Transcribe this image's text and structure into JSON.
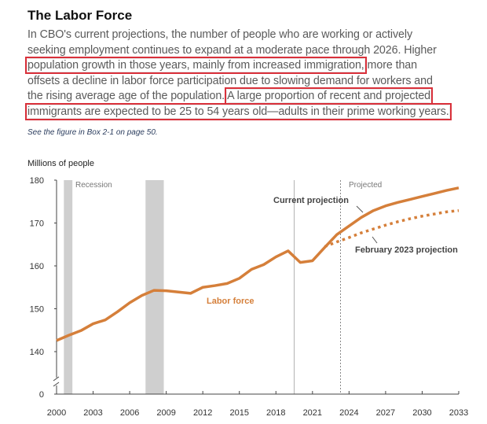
{
  "title": "The Labor Force",
  "paragraph": [
    [
      {
        "text": "In CBO's current projections, the number of people who are working or actively",
        "hl": false
      }
    ],
    [
      {
        "text": "seeking employment continues to expand at a moderate pace through 2026. Higher",
        "hl": false
      }
    ],
    [
      {
        "text": "population growth in those years, mainly from increased immigration,",
        "hl": true
      },
      {
        "text": " more than",
        "hl": false
      }
    ],
    [
      {
        "text": "offsets a decline in labor force participation due to slowing demand for workers and",
        "hl": false
      }
    ],
    [
      {
        "text": "the rising average age of the population. ",
        "hl": false
      },
      {
        "text": "A large proportion of recent and projected",
        "hl": true
      }
    ],
    [
      {
        "text": "immigrants are expected to be 25 to 54 years old—adults in their prime working years.",
        "hl": true
      }
    ]
  ],
  "note": "See the figure in Box 2-1 on page 50.",
  "colors": {
    "labor_force": "#d57f3a",
    "recession": "#cfcfcf",
    "highlight_box": "#d9303a"
  },
  "chart_data": {
    "type": "line",
    "ylabel": "Millions of people",
    "yticks": [
      "180",
      "170",
      "160",
      "150",
      "140",
      "0"
    ],
    "ytick_values": [
      180,
      170,
      160,
      150,
      140,
      0
    ],
    "y_axis_break": true,
    "xticks": [
      "2000",
      "2003",
      "2006",
      "2009",
      "2012",
      "2015",
      "2018",
      "2021",
      "2024",
      "2027",
      "2030",
      "2033"
    ],
    "xlim": [
      2000,
      2033
    ],
    "grid": false,
    "recessions": [
      [
        2000.6,
        2001.3
      ],
      [
        2007.3,
        2008.8
      ]
    ],
    "recession_label": "Recession",
    "projected_label": "Projected",
    "projected_start": 2023.3,
    "covid_marker": 2019.5,
    "series_label": "Labor force",
    "x": [
      2000,
      2001,
      2002,
      2003,
      2004,
      2005,
      2006,
      2007,
      2008,
      2009,
      2010,
      2011,
      2012,
      2013,
      2014,
      2015,
      2016,
      2017,
      2018,
      2019,
      2020,
      2021,
      2022,
      2023,
      2024,
      2025,
      2026,
      2027,
      2028,
      2029,
      2030,
      2031,
      2032,
      2033
    ],
    "series": [
      {
        "name": "Current projection",
        "style": "solid",
        "values": [
          142.6,
          143.8,
          144.9,
          146.5,
          147.4,
          149.3,
          151.4,
          153.1,
          154.3,
          154.2,
          153.9,
          153.6,
          155.0,
          155.4,
          155.9,
          157.1,
          159.2,
          160.3,
          162.1,
          163.5,
          160.8,
          161.2,
          164.3,
          167.3,
          169.3,
          171.3,
          172.9,
          174.0,
          174.8,
          175.5,
          176.2,
          176.9,
          177.6,
          178.2
        ]
      },
      {
        "name": "February 2023 projection",
        "style": "dotted",
        "x": [
          2022,
          2023,
          2024,
          2025,
          2026,
          2027,
          2028,
          2029,
          2030,
          2031,
          2032,
          2033
        ],
        "values": [
          164.5,
          165.6,
          166.6,
          167.7,
          168.6,
          169.5,
          170.3,
          171.0,
          171.6,
          172.1,
          172.6,
          172.9
        ]
      }
    ]
  }
}
